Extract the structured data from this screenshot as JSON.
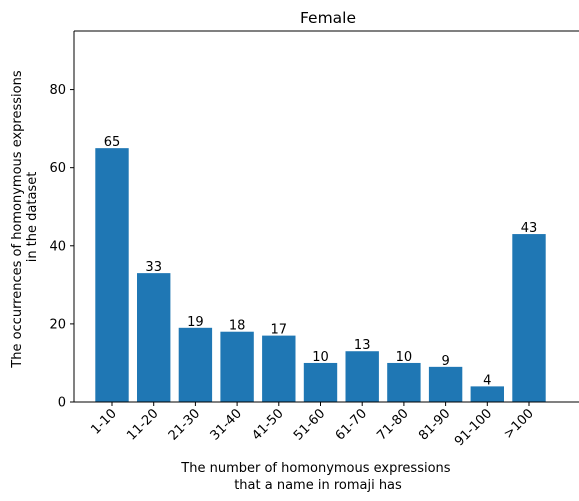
{
  "chart_data": {
    "type": "bar",
    "title": "Female",
    "xlabel_lines": [
      "The number of homonymous expressions",
      "that a name in romaji has"
    ],
    "ylabel_lines": [
      "The occurrences of homonymous expressions",
      "in the dataset"
    ],
    "categories": [
      "1-10",
      "11-20",
      "21-30",
      "31-40",
      "41-50",
      "51-60",
      "61-70",
      "71-80",
      "81-90",
      "91-100",
      ">100"
    ],
    "values": [
      65,
      33,
      19,
      18,
      17,
      10,
      13,
      10,
      9,
      4,
      43
    ],
    "data_labels": [
      "65",
      "33",
      "19",
      "18",
      "17",
      "10",
      "13",
      "10",
      "9",
      "4",
      "43"
    ],
    "yticks": [
      0,
      20,
      40,
      60,
      80
    ],
    "ylim": [
      0,
      95
    ],
    "bar_color": "#1f77b4",
    "grid": false,
    "legend": "none"
  }
}
